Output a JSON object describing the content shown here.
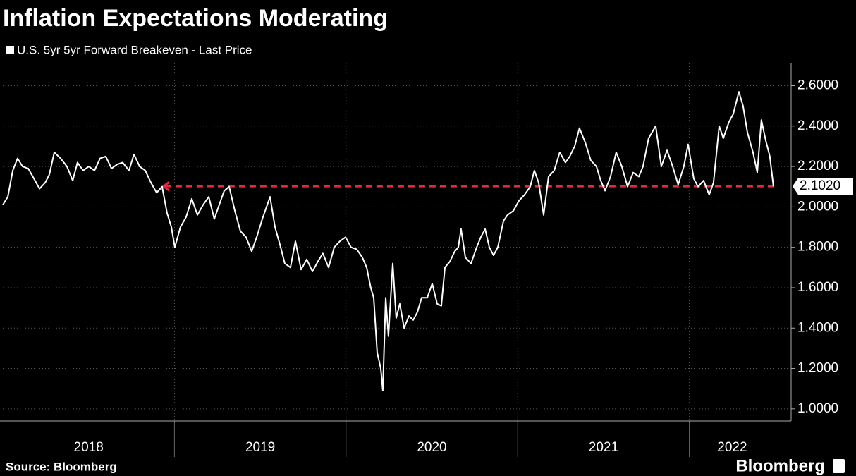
{
  "chart_data": {
    "type": "line",
    "title": "Inflation Expectations Moderating",
    "source": "Source: Bloomberg",
    "brand": "Bloomberg",
    "x": [
      2018.0,
      2018.029,
      2018.058,
      2018.086,
      2018.115,
      2018.148,
      2018.181,
      2018.214,
      2018.247,
      2018.271,
      2018.3,
      2018.337,
      2018.374,
      2018.407,
      2018.435,
      2018.468,
      2018.501,
      2018.534,
      2018.567,
      2018.6,
      2018.633,
      2018.666,
      2018.698,
      2018.735,
      2018.764,
      2018.797,
      2018.83,
      2018.863,
      2018.896,
      2018.928,
      2018.957,
      2018.982,
      2019.002,
      2019.035,
      2019.068,
      2019.101,
      2019.134,
      2019.167,
      2019.2,
      2019.232,
      2019.265,
      2019.29,
      2019.319,
      2019.352,
      2019.384,
      2019.417,
      2019.45,
      2019.483,
      2019.512,
      2019.557,
      2019.586,
      2019.619,
      2019.643,
      2019.676,
      2019.705,
      2019.738,
      2019.771,
      2019.804,
      2019.836,
      2019.865,
      2019.898,
      2019.931,
      2019.964,
      2019.997,
      2020.029,
      2020.062,
      2020.095,
      2020.12,
      2020.144,
      2020.161,
      2020.181,
      2020.202,
      2020.214,
      2020.231,
      2020.247,
      2020.272,
      2020.292,
      2020.313,
      2020.338,
      2020.366,
      2020.391,
      2020.416,
      2020.44,
      2020.473,
      2020.502,
      2020.531,
      2020.555,
      2020.576,
      2020.605,
      2020.633,
      2020.654,
      2020.67,
      2020.695,
      2020.728,
      2020.761,
      2020.785,
      2020.81,
      2020.835,
      2020.859,
      2020.884,
      2020.917,
      2020.941,
      2020.974,
      2021.007,
      2021.04,
      2021.073,
      2021.097,
      2021.122,
      2021.151,
      2021.18,
      2021.213,
      2021.245,
      2021.278,
      2021.303,
      2021.332,
      2021.36,
      2021.393,
      2021.426,
      2021.459,
      2021.484,
      2021.509,
      2021.541,
      2021.574,
      2021.607,
      2021.64,
      2021.673,
      2021.706,
      2021.73,
      2021.763,
      2021.804,
      2021.837,
      2021.87,
      2021.903,
      2021.935,
      2021.968,
      2021.993,
      2022.026,
      2022.051,
      2022.083,
      2022.116,
      2022.141,
      2022.174,
      2022.198,
      2022.231,
      2022.256,
      2022.289,
      2022.313,
      2022.338,
      2022.371,
      2022.396,
      2022.42,
      2022.445,
      2022.469,
      2022.49
    ],
    "series": [
      {
        "name": "U.S. 5yr 5yr Forward Breakeven - Last Price",
        "color": "#ffffff",
        "values": [
          2.01,
          2.05,
          2.18,
          2.24,
          2.2,
          2.19,
          2.14,
          2.09,
          2.12,
          2.16,
          2.27,
          2.24,
          2.2,
          2.13,
          2.22,
          2.18,
          2.2,
          2.18,
          2.24,
          2.25,
          2.19,
          2.21,
          2.22,
          2.18,
          2.26,
          2.2,
          2.18,
          2.12,
          2.07,
          2.1,
          1.97,
          1.9,
          1.8,
          1.9,
          1.95,
          2.04,
          1.96,
          2.01,
          2.05,
          1.94,
          2.02,
          2.08,
          2.1,
          1.98,
          1.88,
          1.85,
          1.78,
          1.86,
          1.94,
          2.05,
          1.9,
          1.8,
          1.72,
          1.7,
          1.83,
          1.69,
          1.74,
          1.68,
          1.73,
          1.77,
          1.7,
          1.8,
          1.83,
          1.85,
          1.8,
          1.79,
          1.75,
          1.7,
          1.6,
          1.55,
          1.28,
          1.2,
          1.09,
          1.55,
          1.36,
          1.72,
          1.45,
          1.52,
          1.4,
          1.46,
          1.44,
          1.48,
          1.55,
          1.55,
          1.62,
          1.52,
          1.51,
          1.7,
          1.73,
          1.78,
          1.8,
          1.89,
          1.75,
          1.72,
          1.8,
          1.85,
          1.89,
          1.8,
          1.76,
          1.8,
          1.93,
          1.96,
          1.98,
          2.03,
          2.06,
          2.1,
          2.18,
          2.12,
          1.96,
          2.15,
          2.18,
          2.27,
          2.22,
          2.25,
          2.3,
          2.39,
          2.32,
          2.23,
          2.2,
          2.13,
          2.08,
          2.15,
          2.27,
          2.2,
          2.1,
          2.17,
          2.15,
          2.2,
          2.34,
          2.4,
          2.2,
          2.28,
          2.2,
          2.11,
          2.2,
          2.31,
          2.14,
          2.1,
          2.13,
          2.06,
          2.12,
          2.4,
          2.34,
          2.42,
          2.46,
          2.57,
          2.5,
          2.37,
          2.27,
          2.17,
          2.43,
          2.33,
          2.25,
          2.102
        ]
      }
    ],
    "reference": {
      "value": 2.102,
      "label": "2.1020",
      "start": 2018.928,
      "color": "#e8263c"
    },
    "xlim": [
      2018,
      2022.5
    ],
    "xticks": [
      {
        "value": 2018.5,
        "label": "2018"
      },
      {
        "value": 2019.5,
        "label": "2019"
      },
      {
        "value": 2020.5,
        "label": "2020"
      },
      {
        "value": 2021.5,
        "label": "2021"
      },
      {
        "value": 2022.25,
        "label": "2022"
      }
    ],
    "ylim": [
      0.94,
      2.71
    ],
    "yticks": [
      {
        "value": 1.0,
        "label": "1.0000"
      },
      {
        "value": 1.2,
        "label": "1.2000"
      },
      {
        "value": 1.4,
        "label": "1.4000"
      },
      {
        "value": 1.6,
        "label": "1.6000"
      },
      {
        "value": 1.8,
        "label": "1.8000"
      },
      {
        "value": 2.0,
        "label": "2.0000"
      },
      {
        "value": 2.2,
        "label": "2.2000"
      },
      {
        "value": 2.4,
        "label": "2.4000"
      },
      {
        "value": 2.6,
        "label": "2.6000"
      }
    ],
    "grid": true
  }
}
